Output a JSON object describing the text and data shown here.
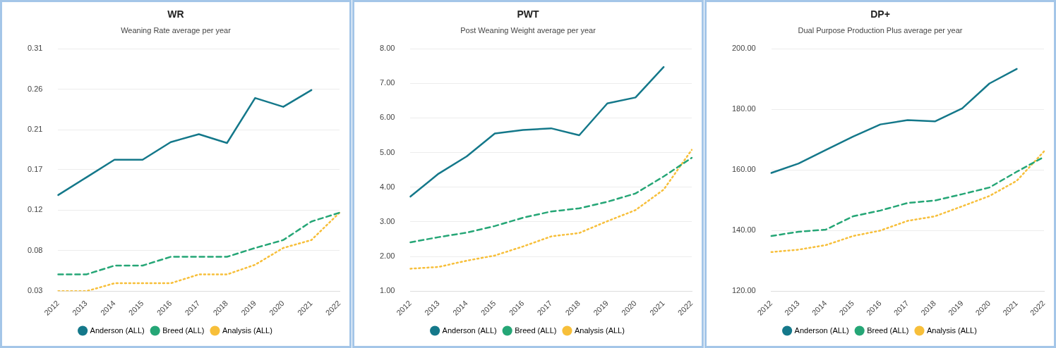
{
  "chart_data": [
    {
      "type": "line",
      "title": "WR",
      "subtitle": "Weaning Rate average per year",
      "categories": [
        "2012",
        "2013",
        "2014",
        "2015",
        "2016",
        "2017",
        "2018",
        "2019",
        "2020",
        "2021",
        "2022"
      ],
      "series": [
        {
          "name": "Anderson (ALL)",
          "color": "#14788a",
          "line_style": "solid",
          "values": [
            0.139,
            0.159,
            0.179,
            0.179,
            0.199,
            0.208,
            0.198,
            0.249,
            0.239,
            0.258,
            null
          ]
        },
        {
          "name": "Breed (ALL)",
          "color": "#25a676",
          "line_style": "dashed",
          "values": [
            0.049,
            0.049,
            0.059,
            0.059,
            0.069,
            0.069,
            0.069,
            0.079,
            0.088,
            0.109,
            0.119
          ]
        },
        {
          "name": "Analysis (ALL)",
          "color": "#f7bf3a",
          "line_style": "dotted",
          "values": [
            0.03,
            0.03,
            0.039,
            0.039,
            0.039,
            0.049,
            0.049,
            0.06,
            0.079,
            0.088,
            0.119
          ]
        }
      ],
      "ylim": [
        0.03,
        0.305
      ],
      "yticks": [
        0.03,
        {
          "value": 0.076,
          "label": "0.08"
        },
        {
          "value": 0.122,
          "label": "0.12"
        },
        {
          "value": 0.168,
          "label": "0.17"
        },
        {
          "value": 0.213,
          "label": "0.21"
        },
        {
          "value": 0.259,
          "label": "0.26"
        },
        {
          "value": 0.305,
          "label": "0.31"
        }
      ],
      "grid": "y",
      "legend": "bottom",
      "marker": "none"
    },
    {
      "type": "line",
      "title": "PWT",
      "subtitle": "Post Weaning Weight average per year",
      "categories": [
        "2012",
        "2013",
        "2014",
        "2015",
        "2016",
        "2017",
        "2018",
        "2019",
        "2020",
        "2021",
        "2022"
      ],
      "series": [
        {
          "name": "Anderson (ALL)",
          "color": "#14788a",
          "line_style": "solid",
          "values": [
            3.73,
            4.39,
            4.89,
            5.55,
            5.65,
            5.7,
            5.5,
            6.42,
            6.59,
            7.47,
            null
          ]
        },
        {
          "name": "Breed (ALL)",
          "color": "#25a676",
          "line_style": "dashed",
          "values": [
            2.41,
            2.56,
            2.69,
            2.88,
            3.12,
            3.3,
            3.39,
            3.58,
            3.82,
            4.31,
            4.85
          ]
        },
        {
          "name": "Analysis (ALL)",
          "color": "#f7bf3a",
          "line_style": "dotted",
          "values": [
            1.65,
            1.7,
            1.88,
            2.03,
            2.29,
            2.58,
            2.68,
            3.02,
            3.34,
            3.93,
            5.08
          ]
        }
      ],
      "ylim": [
        1,
        8
      ],
      "yticks": [
        {
          "value": 1,
          "label": "1.00"
        },
        {
          "value": 2,
          "label": "2.00"
        },
        {
          "value": 3,
          "label": "3.00"
        },
        {
          "value": 4,
          "label": "4.00"
        },
        {
          "value": 5,
          "label": "5.00"
        },
        {
          "value": 6,
          "label": "6.00"
        },
        {
          "value": 7,
          "label": "7.00"
        },
        {
          "value": 8,
          "label": "8.00"
        }
      ],
      "grid": "y",
      "legend": "bottom",
      "marker": "none"
    },
    {
      "type": "line",
      "title": "DP+",
      "subtitle": "Dual Purpose Production Plus average per year",
      "categories": [
        "2012",
        "2013",
        "2014",
        "2015",
        "2016",
        "2017",
        "2018",
        "2019",
        "2020",
        "2021",
        "2022"
      ],
      "series": [
        {
          "name": "Anderson (ALL)",
          "color": "#14788a",
          "line_style": "solid",
          "values": [
            159.0,
            162.1,
            166.6,
            171.0,
            175.0,
            176.4,
            176.0,
            180.3,
            188.5,
            193.3,
            null
          ]
        },
        {
          "name": "Breed (ALL)",
          "color": "#25a676",
          "line_style": "dashed",
          "values": [
            138.2,
            139.6,
            140.3,
            144.7,
            146.6,
            149.1,
            149.9,
            152.0,
            154.2,
            159.4,
            164.3
          ]
        },
        {
          "name": "Analysis (ALL)",
          "color": "#f7bf3a",
          "line_style": "dotted",
          "values": [
            132.9,
            133.7,
            135.2,
            138.2,
            140.0,
            143.2,
            144.7,
            148.0,
            151.4,
            156.4,
            166.1
          ]
        }
      ],
      "ylim": [
        120,
        200
      ],
      "yticks": [
        {
          "value": 120,
          "label": "120.00"
        },
        {
          "value": 140,
          "label": "140.00"
        },
        {
          "value": 160,
          "label": "160.00"
        },
        {
          "value": 180,
          "label": "180.00"
        },
        {
          "value": 200,
          "label": "200.00"
        }
      ],
      "grid": "y",
      "legend": "bottom",
      "marker": "none"
    }
  ]
}
